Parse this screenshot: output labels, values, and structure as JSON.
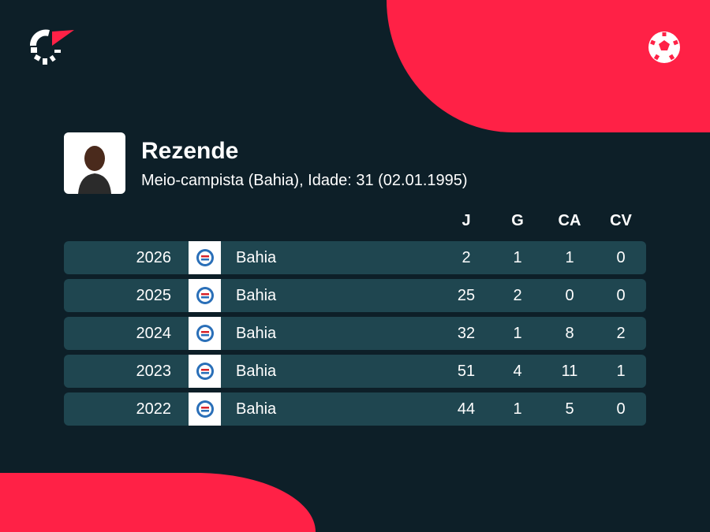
{
  "player": {
    "name": "Rezende",
    "subtitle": "Meio-campista (Bahia), Idade: 31 (02.01.1995)"
  },
  "columns": [
    "J",
    "G",
    "CA",
    "CV"
  ],
  "rows": [
    {
      "year": "2026",
      "team": "Bahia",
      "J": "2",
      "G": "1",
      "CA": "1",
      "CV": "0"
    },
    {
      "year": "2025",
      "team": "Bahia",
      "J": "25",
      "G": "2",
      "CA": "0",
      "CV": "0"
    },
    {
      "year": "2024",
      "team": "Bahia",
      "J": "32",
      "G": "1",
      "CA": "8",
      "CV": "2"
    },
    {
      "year": "2023",
      "team": "Bahia",
      "J": "51",
      "G": "4",
      "CA": "11",
      "CV": "1"
    },
    {
      "year": "2022",
      "team": "Bahia",
      "J": "44",
      "G": "1",
      "CA": "5",
      "CV": "0"
    }
  ],
  "colors": {
    "accent": "#ff2146",
    "background": "#0d1f28",
    "row": "#1f4650"
  }
}
